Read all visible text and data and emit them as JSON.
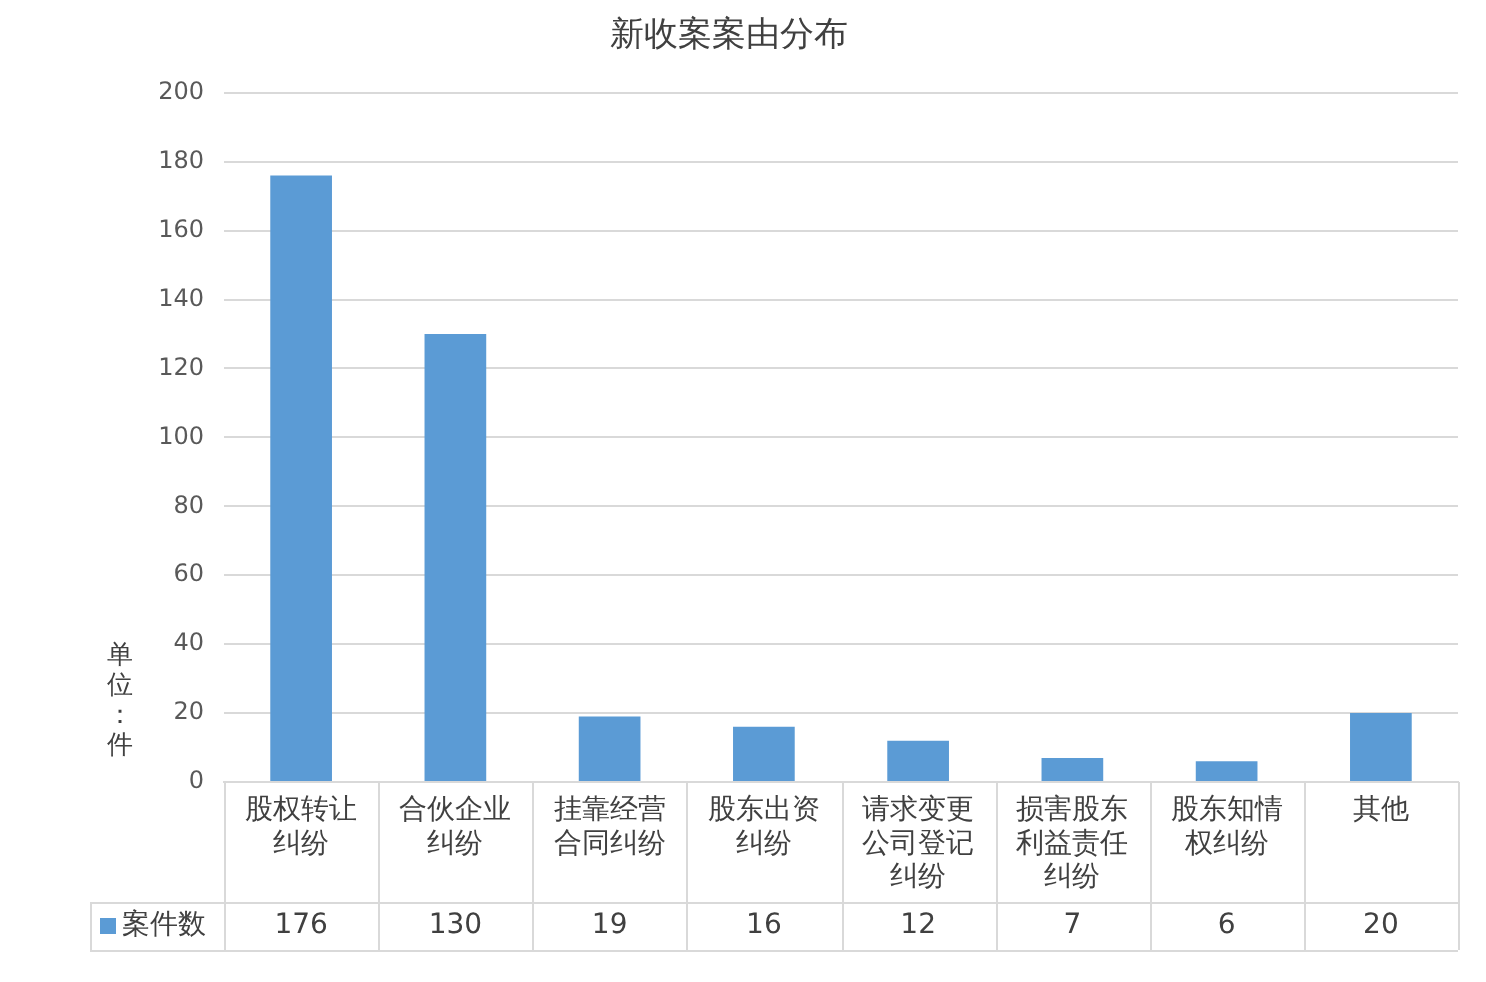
{
  "chart_data": {
    "type": "bar",
    "title": "新收案案由分布",
    "ylabel": "单位：件",
    "categories": [
      "股权转让纠纷",
      "合伙企业纠纷",
      "挂靠经营合同纠纷",
      "股东出资纠纷",
      "请求变更公司登记纠纷",
      "损害股东利益责任纠纷",
      "股东知情权纠纷",
      "其他"
    ],
    "series": [
      {
        "name": "案件数",
        "color": "#5b9bd5",
        "values": [
          176,
          130,
          19,
          16,
          12,
          7,
          6,
          20
        ]
      }
    ],
    "ylim": [
      0,
      200
    ],
    "yticks": [
      0,
      20,
      40,
      60,
      80,
      100,
      120,
      140,
      160,
      180,
      200
    ],
    "grid": "y",
    "legend": "bottom",
    "data_labels": true
  }
}
